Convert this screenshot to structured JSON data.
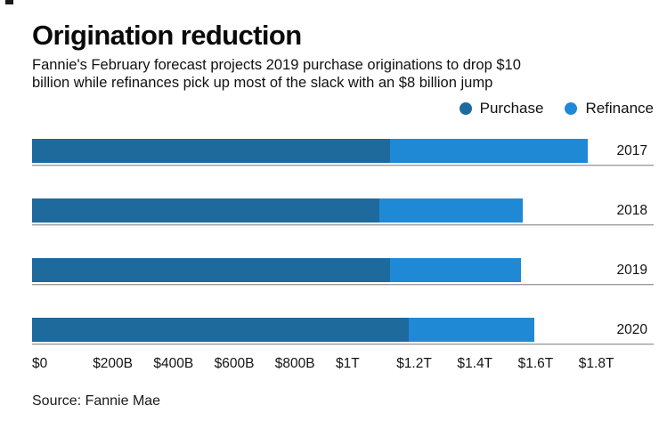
{
  "title": "Origination reduction",
  "subtitle_lines": [
    "Fannie's February forecast projects 2019 purchase originations to drop $10",
    "billion while refinances pick up most of the slack with an $8 billion jump"
  ],
  "legend": {
    "items": [
      {
        "label": "Purchase",
        "color": "#1e6a9c"
      },
      {
        "label": "Refinance",
        "color": "#2089d5"
      }
    ]
  },
  "source": "Source: Fannie Mae",
  "colors": {
    "purchase": "#1e6a9c",
    "refinance": "#2089d5",
    "row_underline": "#9b9b9b",
    "text": "#111111"
  },
  "chart_data": {
    "type": "bar",
    "orientation": "horizontal",
    "stacked": true,
    "title": "Origination reduction",
    "categories": [
      "2017",
      "2018",
      "2019",
      "2020"
    ],
    "series": [
      {
        "name": "Purchase",
        "color": "#1e6a9c",
        "values_billions": [
          1180,
          1145,
          1180,
          1240
        ]
      },
      {
        "name": "Refinance",
        "color": "#2089d5",
        "values_billions": [
          650,
          470,
          430,
          415
        ]
      }
    ],
    "totals_billions": [
      1830,
      1615,
      1610,
      1655
    ],
    "unit": "USD billions",
    "x_axis": {
      "ticks": [
        "$0",
        "$200B",
        "$400B",
        "$600B",
        "$800B",
        "$1T",
        "$1.2T",
        "$1.4T",
        "$1.6T",
        "$1.8T"
      ],
      "tick_values_billions": [
        0,
        200,
        400,
        600,
        800,
        1000,
        1200,
        1400,
        1600,
        1800
      ]
    },
    "legend_position": "top-right",
    "grid": false
  }
}
